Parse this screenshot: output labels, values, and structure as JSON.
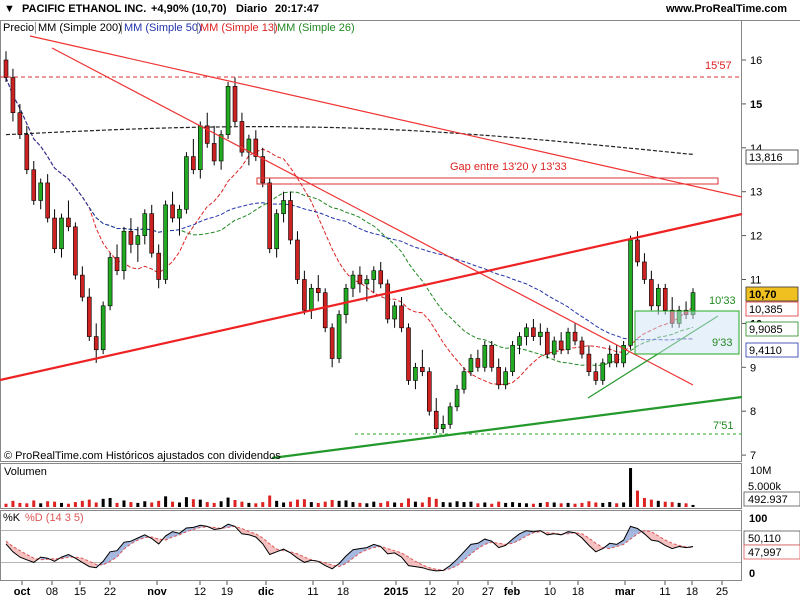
{
  "header": {
    "title": "PACIFIC ETHANOL INC.",
    "change": "+4,90% (10,70)",
    "period": "Diario",
    "time": "20:17:47",
    "website": "www.ProRealTime.com"
  },
  "legend": {
    "price": "Precio",
    "ma200": "MM (Simple 200)",
    "ma50": "MM (Simple 50)",
    "ma13": "MM (Simple 13)",
    "ma26": "MM (Simple 26)"
  },
  "colors": {
    "up": "#22aa22",
    "down": "#cc2222",
    "ma200": "#222222",
    "ma50": "#2233aa",
    "ma13": "#dd2222",
    "ma26": "#228822",
    "resistance": "#ee3333",
    "support": "#33aa33"
  },
  "annotations": {
    "level_1557": "15'57",
    "gap": "Gap entre 13'20 y 13'33",
    "level_1033": "10'33",
    "level_933": "9'33",
    "level_751": "7'51",
    "copyright": "© ProRealTime.com Históricos ajustados con dividendos"
  },
  "price_tags": {
    "ma200": "13,816",
    "close": "10,70",
    "ma13": "10,385",
    "ma26": "9,9085",
    "ma50": "9,4110"
  },
  "volume": {
    "label": "Volumen",
    "ticks": [
      "10M",
      "5.000k"
    ],
    "last": "492.937"
  },
  "stoch": {
    "label_k": "%K",
    "label_d": "%D (14 3 5)",
    "ticks": [
      "100",
      "0"
    ],
    "k_value": "50,110",
    "d_value": "47,997"
  },
  "x_axis": [
    "oct",
    "08",
    "15",
    "22",
    "nov",
    "12",
    "19",
    "dic",
    "11",
    "18",
    "2015",
    "12",
    "20",
    "27",
    "feb",
    "10",
    "18",
    "mar",
    "11",
    "18",
    "25"
  ],
  "chart_data": {
    "type": "candlestick",
    "price_axis": {
      "ticks": [
        16,
        15,
        14,
        13,
        12,
        11,
        10,
        9,
        8,
        7
      ],
      "ylim": [
        7,
        16.7
      ]
    },
    "candles": [
      [
        16.0,
        16.2,
        15.5,
        15.6
      ],
      [
        15.6,
        15.8,
        14.6,
        14.8
      ],
      [
        14.8,
        15.0,
        14.2,
        14.3
      ],
      [
        14.3,
        14.5,
        13.4,
        13.5
      ],
      [
        13.5,
        13.7,
        12.7,
        12.8
      ],
      [
        12.8,
        13.3,
        12.6,
        13.2
      ],
      [
        13.2,
        13.4,
        12.3,
        12.4
      ],
      [
        12.4,
        12.6,
        11.6,
        11.7
      ],
      [
        11.7,
        12.5,
        11.5,
        12.4
      ],
      [
        12.4,
        12.8,
        12.1,
        12.2
      ],
      [
        12.2,
        12.3,
        11.0,
        11.1
      ],
      [
        11.1,
        11.3,
        10.5,
        10.6
      ],
      [
        10.6,
        10.8,
        9.6,
        9.7
      ],
      [
        9.7,
        10.0,
        9.1,
        9.4
      ],
      [
        9.4,
        10.5,
        9.3,
        10.4
      ],
      [
        10.4,
        11.6,
        10.3,
        11.5
      ],
      [
        11.5,
        11.8,
        11.1,
        11.2
      ],
      [
        11.2,
        12.2,
        11.0,
        12.1
      ],
      [
        12.1,
        12.4,
        11.6,
        11.8
      ],
      [
        11.8,
        12.2,
        11.4,
        12.0
      ],
      [
        12.0,
        12.6,
        11.8,
        12.5
      ],
      [
        12.5,
        12.7,
        11.5,
        11.6
      ],
      [
        11.6,
        11.8,
        10.8,
        11.0
      ],
      [
        11.0,
        12.8,
        10.9,
        12.7
      ],
      [
        12.7,
        13.0,
        12.3,
        12.4
      ],
      [
        12.4,
        12.7,
        12.0,
        12.6
      ],
      [
        12.6,
        13.9,
        12.5,
        13.8
      ],
      [
        13.8,
        14.2,
        13.4,
        13.5
      ],
      [
        13.5,
        14.6,
        13.3,
        14.5
      ],
      [
        14.5,
        14.8,
        14.0,
        14.1
      ],
      [
        14.1,
        14.5,
        13.6,
        13.7
      ],
      [
        13.7,
        14.4,
        13.5,
        14.3
      ],
      [
        14.3,
        15.5,
        14.2,
        15.4
      ],
      [
        15.4,
        15.6,
        14.5,
        14.6
      ],
      [
        14.6,
        14.8,
        13.8,
        13.9
      ],
      [
        13.9,
        14.3,
        13.6,
        14.2
      ],
      [
        14.2,
        14.4,
        13.7,
        13.8
      ],
      [
        13.8,
        14.0,
        13.1,
        13.2
      ],
      [
        13.2,
        13.3,
        11.6,
        11.7
      ],
      [
        11.7,
        12.6,
        11.5,
        12.5
      ],
      [
        12.5,
        13.0,
        12.3,
        12.8
      ],
      [
        12.8,
        13.0,
        11.8,
        11.9
      ],
      [
        11.9,
        12.1,
        10.9,
        11.0
      ],
      [
        11.0,
        11.2,
        10.2,
        10.3
      ],
      [
        10.3,
        10.9,
        10.1,
        10.8
      ],
      [
        10.8,
        11.1,
        10.5,
        10.7
      ],
      [
        10.7,
        10.8,
        9.8,
        9.9
      ],
      [
        9.9,
        10.0,
        9.0,
        9.2
      ],
      [
        9.2,
        10.3,
        9.1,
        10.2
      ],
      [
        10.2,
        10.9,
        10.0,
        10.8
      ],
      [
        10.8,
        11.2,
        10.6,
        11.1
      ],
      [
        11.1,
        11.3,
        10.7,
        10.9
      ],
      [
        10.9,
        11.1,
        10.5,
        11.0
      ],
      [
        11.0,
        11.3,
        10.7,
        11.2
      ],
      [
        11.2,
        11.4,
        10.8,
        10.9
      ],
      [
        10.9,
        11.0,
        10.0,
        10.1
      ],
      [
        10.1,
        10.5,
        9.9,
        10.4
      ],
      [
        10.4,
        10.6,
        9.8,
        9.9
      ],
      [
        9.9,
        10.0,
        8.6,
        8.7
      ],
      [
        8.7,
        9.1,
        8.5,
        9.0
      ],
      [
        9.0,
        9.4,
        8.8,
        8.9
      ],
      [
        8.9,
        9.0,
        7.9,
        8.0
      ],
      [
        8.0,
        8.3,
        7.5,
        7.6
      ],
      [
        7.6,
        7.9,
        7.5,
        7.7
      ],
      [
        7.7,
        8.2,
        7.6,
        8.1
      ],
      [
        8.1,
        8.6,
        8.0,
        8.5
      ],
      [
        8.5,
        9.0,
        8.4,
        8.9
      ],
      [
        8.9,
        9.3,
        8.8,
        9.2
      ],
      [
        9.2,
        9.4,
        8.9,
        9.0
      ],
      [
        9.0,
        9.6,
        8.9,
        9.5
      ],
      [
        9.5,
        9.6,
        8.9,
        9.0
      ],
      [
        9.0,
        9.2,
        8.5,
        8.6
      ],
      [
        8.6,
        9.0,
        8.5,
        8.9
      ],
      [
        8.9,
        9.6,
        8.8,
        9.5
      ],
      [
        9.5,
        9.8,
        9.3,
        9.7
      ],
      [
        9.7,
        10.0,
        9.5,
        9.9
      ],
      [
        9.9,
        10.1,
        9.6,
        9.7
      ],
      [
        9.7,
        10.0,
        9.5,
        9.8
      ],
      [
        9.8,
        9.9,
        9.2,
        9.3
      ],
      [
        9.3,
        9.7,
        9.2,
        9.6
      ],
      [
        9.6,
        9.8,
        9.3,
        9.4
      ],
      [
        9.4,
        9.9,
        9.3,
        9.8
      ],
      [
        9.8,
        10.0,
        9.5,
        9.6
      ],
      [
        9.6,
        9.7,
        9.2,
        9.3
      ],
      [
        9.3,
        9.5,
        8.8,
        8.9
      ],
      [
        8.9,
        9.1,
        8.6,
        8.7
      ],
      [
        8.7,
        9.2,
        8.6,
        9.1
      ],
      [
        9.1,
        9.5,
        9.0,
        9.3
      ],
      [
        9.3,
        9.5,
        9.0,
        9.1
      ],
      [
        9.1,
        9.6,
        9.0,
        9.5
      ],
      [
        9.5,
        12.0,
        9.4,
        11.9
      ],
      [
        11.9,
        12.1,
        11.3,
        11.4
      ],
      [
        11.4,
        11.6,
        10.9,
        11.0
      ],
      [
        11.0,
        11.2,
        10.3,
        10.4
      ],
      [
        10.4,
        10.9,
        10.2,
        10.8
      ],
      [
        10.8,
        10.9,
        10.2,
        10.3
      ],
      [
        10.3,
        10.6,
        9.9,
        10.0
      ],
      [
        10.0,
        10.4,
        9.9,
        10.3
      ],
      [
        10.3,
        10.5,
        10.1,
        10.2
      ],
      [
        10.2,
        10.8,
        10.1,
        10.7
      ]
    ],
    "volume_values": [
      0.8,
      1.5,
      1.0,
      0.9,
      1.6,
      0.9,
      1.4,
      1.3,
      1.0,
      0.8,
      1.2,
      1.5,
      1.8,
      1.1,
      2.0,
      2.2,
      1.0,
      1.6,
      1.2,
      1.0,
      1.4,
      1.1,
      1.5,
      2.6,
      1.3,
      1.1,
      2.4,
      1.9,
      1.8,
      1.2,
      1.0,
      1.4,
      2.3,
      1.7,
      1.3,
      1.0,
      0.9,
      1.2,
      2.8,
      1.5,
      1.1,
      1.3,
      1.8,
      1.9,
      1.2,
      1.0,
      1.3,
      1.7,
      1.5,
      1.6,
      1.2,
      1.0,
      0.9,
      1.3,
      1.0,
      1.4,
      1.1,
      1.0,
      2.1,
      1.3,
      1.1,
      2.4,
      2.0,
      1.2,
      1.1,
      1.4,
      1.2,
      1.3,
      0.9,
      1.1,
      0.8,
      1.3,
      1.0,
      1.2,
      1.0,
      0.9,
      0.8,
      1.0,
      1.2,
      1.1,
      0.9,
      1.0,
      0.8,
      1.0,
      1.4,
      1.1,
      1.0,
      1.2,
      0.9,
      1.1,
      9.5,
      4.0,
      2.2,
      1.8,
      1.5,
      1.3,
      1.2,
      1.0,
      0.9,
      0.5
    ],
    "stoch_k": [
      55,
      40,
      30,
      25,
      20,
      30,
      28,
      22,
      30,
      35,
      28,
      20,
      12,
      10,
      22,
      40,
      42,
      58,
      60,
      66,
      72,
      65,
      55,
      70,
      78,
      75,
      85,
      86,
      90,
      88,
      82,
      84,
      92,
      88,
      74,
      72,
      68,
      55,
      35,
      40,
      45,
      38,
      28,
      20,
      24,
      22,
      14,
      8,
      18,
      32,
      44,
      46,
      48,
      54,
      50,
      36,
      38,
      30,
      14,
      12,
      10,
      6,
      4,
      5,
      14,
      26,
      40,
      54,
      56,
      64,
      60,
      48,
      52,
      64,
      74,
      80,
      78,
      80,
      72,
      74,
      72,
      78,
      76,
      66,
      52,
      40,
      46,
      56,
      54,
      62,
      88,
      84,
      74,
      62,
      60,
      52,
      46,
      50,
      48,
      50
    ],
    "stoch_d": [
      60,
      50,
      42,
      35,
      28,
      25,
      26,
      27,
      27,
      30,
      30,
      28,
      22,
      16,
      15,
      22,
      30,
      45,
      55,
      62,
      67,
      68,
      64,
      62,
      68,
      72,
      78,
      82,
      86,
      87,
      86,
      84,
      86,
      88,
      84,
      78,
      74,
      66,
      55,
      45,
      42,
      40,
      36,
      30,
      25,
      22,
      19,
      15,
      12,
      18,
      28,
      38,
      44,
      48,
      50,
      46,
      42,
      38,
      30,
      22,
      15,
      10,
      7,
      5,
      8,
      14,
      24,
      36,
      46,
      54,
      58,
      56,
      54,
      56,
      62,
      70,
      76,
      78,
      76,
      75,
      73,
      74,
      76,
      74,
      66,
      56,
      48,
      46,
      50,
      54,
      64,
      74,
      80,
      78,
      70,
      62,
      56,
      52,
      49,
      48
    ]
  }
}
